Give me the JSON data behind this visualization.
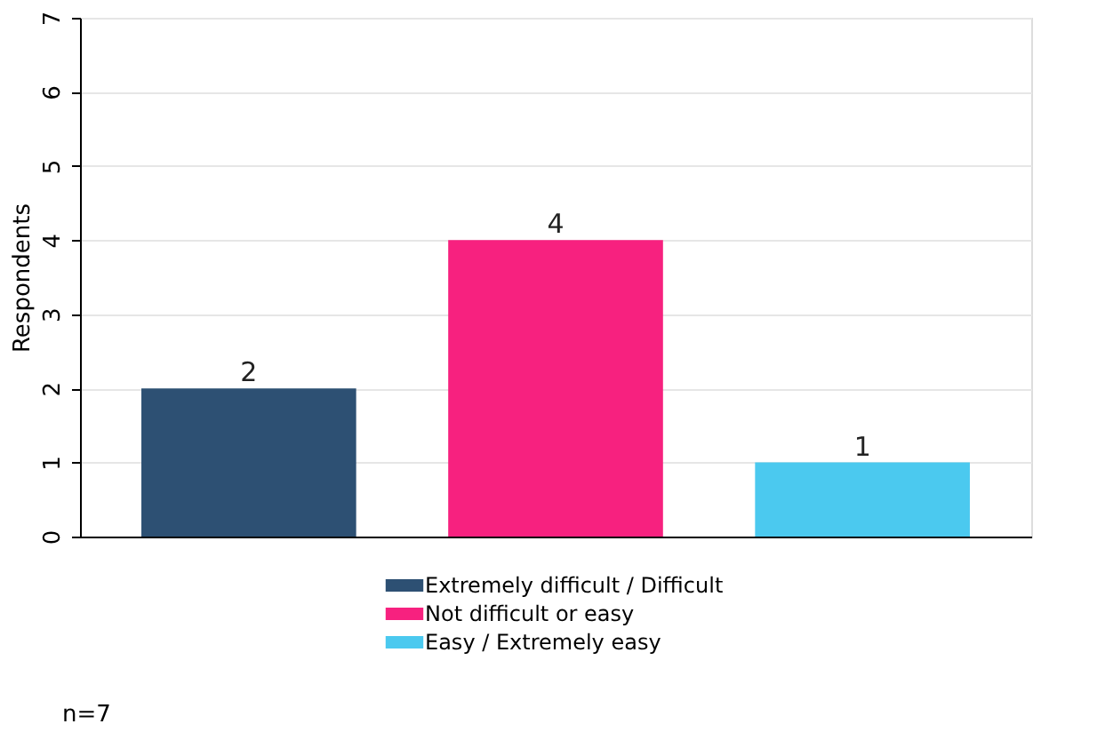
{
  "chart_data": {
    "type": "bar",
    "ylabel": "Respondents",
    "categories": [
      null,
      null,
      null
    ],
    "series": [
      {
        "name": "Extremely difficult / Difficult",
        "color": "#2d5073",
        "values": [
          2,
          null,
          null
        ]
      },
      {
        "name": "Not difficult or easy",
        "color": "#f7217f",
        "values": [
          null,
          4,
          null
        ]
      },
      {
        "name": "Easy / Extremely easy",
        "color": "#4bc9ef",
        "values": [
          null,
          null,
          1
        ]
      }
    ],
    "ylim": [
      0,
      7
    ],
    "yticks": [
      0,
      1,
      2,
      3,
      4,
      5,
      6,
      7
    ],
    "grid": "y",
    "legend": "bottom",
    "data_labels": true,
    "annotations": [
      "n=7"
    ]
  }
}
